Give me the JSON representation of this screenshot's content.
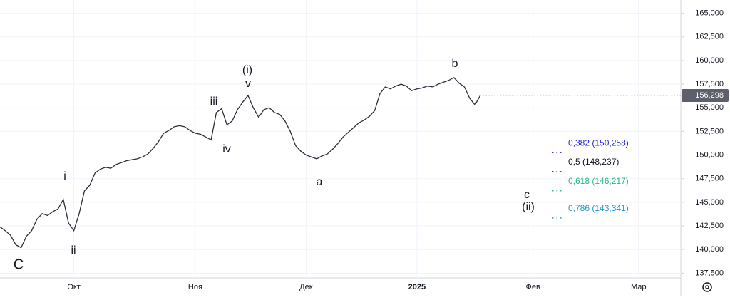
{
  "chart_data": {
    "type": "line",
    "values": [
      142400,
      142000,
      141500,
      140500,
      140200,
      141400,
      142000,
      143200,
      143800,
      143600,
      144000,
      144300,
      145300,
      142800,
      142000,
      143800,
      146200,
      146800,
      148100,
      148500,
      148700,
      148600,
      149000,
      149200,
      149400,
      149500,
      149600,
      149800,
      150100,
      150700,
      151400,
      152300,
      152600,
      153000,
      153100,
      153000,
      152600,
      152300,
      152200,
      151900,
      151600,
      154500,
      154900,
      153200,
      153600,
      154800,
      155600,
      156300,
      155000,
      154000,
      154800,
      155000,
      154500,
      154300,
      153600,
      152500,
      151000,
      150400,
      150000,
      149800,
      149600,
      149900,
      150100,
      150600,
      151200,
      151900,
      152400,
      152900,
      153400,
      153700,
      154100,
      154700,
      156500,
      157200,
      157000,
      157300,
      157500,
      157300,
      156800,
      157000,
      157100,
      157300,
      157200,
      157500,
      157700,
      157900,
      158200,
      157600,
      157200,
      156000,
      155300,
      156298
    ],
    "color": "#2a2e39",
    "xlim": [
      0,
      129
    ],
    "xticks": [
      {
        "value": 14,
        "label": "Окт"
      },
      {
        "value": 37,
        "label": "Ноя"
      },
      {
        "value": 58,
        "label": "Дек"
      },
      {
        "value": 79,
        "label": "2025"
      },
      {
        "value": 101,
        "label": "Фев"
      },
      {
        "value": 121,
        "label": "Мар"
      }
    ],
    "ylim": [
      137000,
      166400
    ],
    "yticks": [
      {
        "value": 137500,
        "label": "137,500"
      },
      {
        "value": 140000,
        "label": "140,000"
      },
      {
        "value": 142500,
        "label": "142,500"
      },
      {
        "value": 145000,
        "label": "145,000"
      },
      {
        "value": 147500,
        "label": "147,500"
      },
      {
        "value": 150000,
        "label": "150,000"
      },
      {
        "value": 152500,
        "label": "152,500"
      },
      {
        "value": 155000,
        "label": "155,000"
      },
      {
        "value": 157500,
        "label": "157,500"
      },
      {
        "value": 160000,
        "label": "160,000"
      },
      {
        "value": 162500,
        "label": "162,500"
      },
      {
        "value": 165000,
        "label": "165,000"
      }
    ],
    "grid": true,
    "last_price": {
      "value": 156298,
      "label": "156,298"
    },
    "annotations": [
      "C",
      "ii",
      "i",
      "iii",
      "iv",
      "(i)",
      "v",
      "a",
      "b",
      "c",
      "(ii)"
    ],
    "levels": [
      {
        "label": "0,382 (150,258)",
        "value": 150258,
        "color": "#1e22d6"
      },
      {
        "label": "0,5 (148,237)",
        "value": 148237,
        "color": "#131722"
      },
      {
        "label": "0,618 (146,217)",
        "value": 146217,
        "color": "#26b88a"
      },
      {
        "label": "0,786 (143,341)",
        "value": 143341,
        "color": "#2196d3"
      }
    ]
  }
}
